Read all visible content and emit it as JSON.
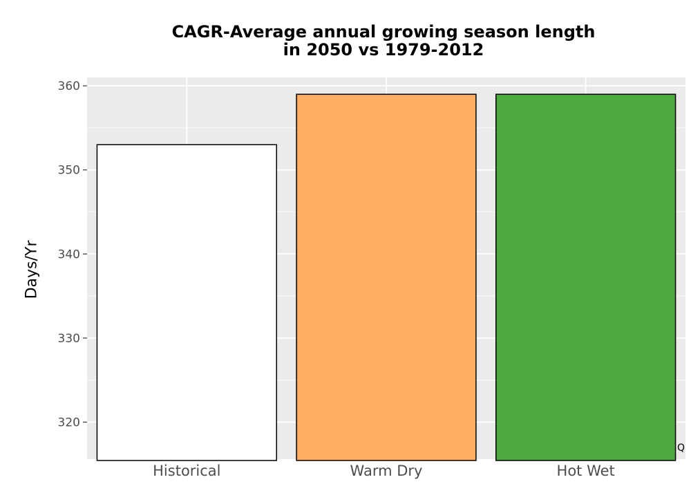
{
  "chart_data": {
    "type": "bar",
    "title_lines": [
      "CAGR-Average annual growing season length",
      "in 2050 vs 1979-2012"
    ],
    "xlabel": "",
    "ylabel": "Days/Yr",
    "categories": [
      "Historical",
      "Warm Dry",
      "Hot Wet"
    ],
    "values": [
      353,
      359,
      359
    ],
    "bar_colors": [
      "#ffffff",
      "#fdae61",
      "#4daa3e"
    ],
    "ylim": [
      315.6,
      361
    ],
    "y_ticks": [
      320,
      330,
      340,
      350,
      360
    ],
    "grid": true,
    "legend": "none",
    "panel_background": "#ebebeb",
    "corner_mark": "Q"
  }
}
